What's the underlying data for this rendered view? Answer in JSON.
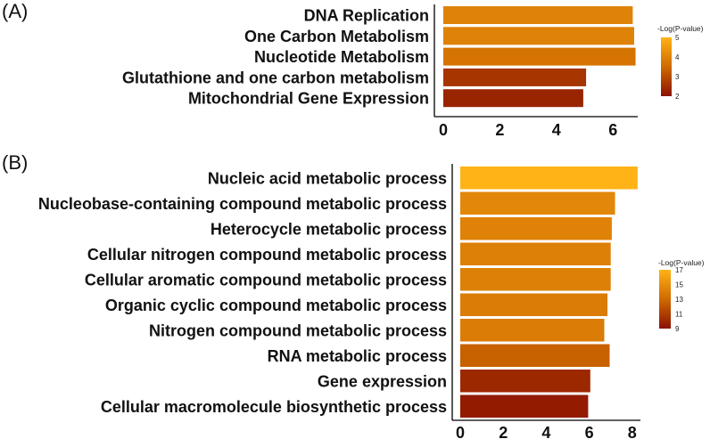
{
  "chart_data": [
    {
      "panel_label": "(A)",
      "type": "bar",
      "orientation": "horizontal",
      "categories": [
        "DNA Replication",
        "One Carbon Metabolism",
        "Nucleotide Metabolism",
        "Glutathione and one carbon metabolism",
        "Mitochondrial Gene Expression"
      ],
      "values": [
        6.7,
        6.75,
        6.8,
        5.05,
        4.95
      ],
      "color_values": [
        4.0,
        4.0,
        3.7,
        2.6,
        2.3
      ],
      "xlim": [
        0,
        7
      ],
      "xticks": [
        0,
        2,
        4,
        6
      ],
      "xlabel": "",
      "ylabel": "",
      "grid": false,
      "legend": {
        "title": "-Log(P-value)",
        "ticks": [
          5,
          4,
          3,
          2
        ],
        "range": [
          2,
          5
        ],
        "low_color": "#8b1200",
        "high_color": "#ffb317",
        "placement": "right"
      }
    },
    {
      "panel_label": "(B)",
      "type": "bar",
      "orientation": "horizontal",
      "categories": [
        "Nucleic acid metabolic process",
        "Nucleobase-containing compound metabolic process",
        "Heterocycle metabolic process",
        "Cellular nitrogen compound metabolic process",
        "Cellular aromatic compound metabolic process",
        "Organic cyclic compound metabolic process",
        "Nitrogen compound metabolic process",
        "RNA metabolic process",
        "Gene expression",
        "Cellular macromolecule biosynthetic process"
      ],
      "values": [
        8.25,
        7.2,
        7.05,
        7.0,
        7.0,
        6.85,
        6.7,
        6.95,
        6.05,
        5.95
      ],
      "color_values": [
        17,
        14.6,
        14.3,
        14.2,
        14.2,
        14.0,
        14.0,
        12.6,
        10.0,
        9.4
      ],
      "xlim": [
        0,
        8.7
      ],
      "xticks": [
        0,
        2,
        4,
        6,
        8
      ],
      "xlabel": "",
      "ylabel": "",
      "grid": false,
      "legend": {
        "title": "-Log(P-value)",
        "ticks": [
          17,
          15,
          13,
          11,
          9
        ],
        "range": [
          9,
          17
        ],
        "low_color": "#8b1200",
        "high_color": "#ffb317",
        "placement": "right"
      }
    }
  ]
}
